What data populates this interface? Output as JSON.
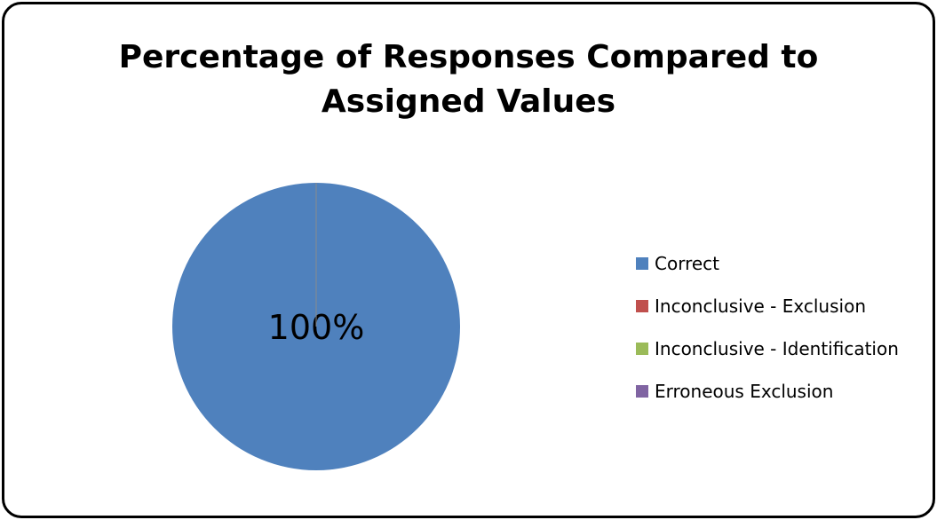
{
  "chart_data": {
    "type": "pie",
    "title": "Percentage of Responses Compared to Assigned Values",
    "categories": [
      "Correct",
      "Inconclusive - Exclusion",
      "Inconclusive - Identification",
      "Erroneous Exclusion"
    ],
    "values": [
      100,
      0,
      0,
      0
    ],
    "value_labels": [
      "100%",
      null,
      null,
      null
    ],
    "colors": [
      "#4f81bd",
      "#c0504d",
      "#9bbb59",
      "#8064a2"
    ],
    "legend": "right"
  }
}
